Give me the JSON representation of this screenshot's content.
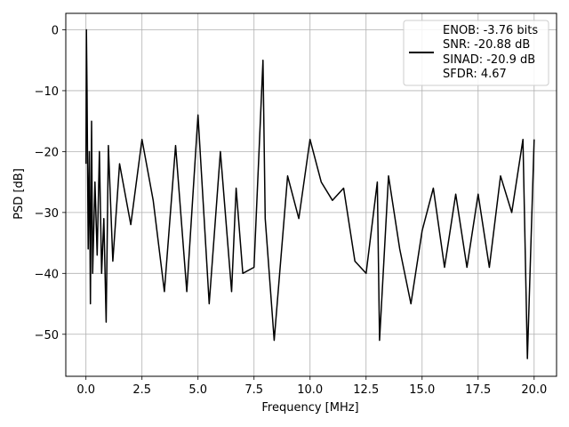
{
  "chart_data": {
    "type": "line",
    "title": "",
    "xlabel": "Frequency [MHz]",
    "ylabel": "PSD [dB]",
    "xlim": [
      -0.9,
      21.0
    ],
    "ylim": [
      -56.9,
      2.7
    ],
    "xticks": [
      0.0,
      2.5,
      5.0,
      7.5,
      10.0,
      12.5,
      15.0,
      17.5,
      20.0
    ],
    "xtick_labels": [
      "0.0",
      "2.5",
      "5.0",
      "7.5",
      "10.0",
      "12.5",
      "15.0",
      "17.5",
      "20.0"
    ],
    "yticks": [
      0,
      -10,
      -20,
      -30,
      -40,
      -50
    ],
    "ytick_labels": [
      "0",
      "−10",
      "−20",
      "−30",
      "−40",
      "−50"
    ],
    "grid": true,
    "legend_position": "top-right",
    "legend": [
      "ENOB: -3.76 bits",
      "SNR: -20.88 dB",
      "SINAD: -20.9 dB",
      "SFDR: 4.67"
    ],
    "series": [
      {
        "color": "#000000",
        "x": [
          0.0,
          0.02,
          0.05,
          0.1,
          0.15,
          0.2,
          0.25,
          0.3,
          0.4,
          0.5,
          0.6,
          0.7,
          0.8,
          0.9,
          1.0,
          1.2,
          1.5,
          2.0,
          2.5,
          3.0,
          3.5,
          4.0,
          4.5,
          5.0,
          5.5,
          6.0,
          6.5,
          6.7,
          7.0,
          7.5,
          7.9,
          8.0,
          8.4,
          9.0,
          9.5,
          10.0,
          10.5,
          11.0,
          11.5,
          12.0,
          12.5,
          13.0,
          13.1,
          13.5,
          14.0,
          14.5,
          15.0,
          15.5,
          16.0,
          16.5,
          17.0,
          17.5,
          18.0,
          18.5,
          19.0,
          19.5,
          19.7,
          20.0
        ],
        "y": [
          -22,
          0,
          -10,
          -36,
          -20,
          -45,
          -15,
          -40,
          -25,
          -37,
          -20,
          -40,
          -31,
          -48,
          -19,
          -38,
          -22,
          -32,
          -18,
          -28,
          -43,
          -19,
          -43,
          -14,
          -45,
          -20,
          -43,
          -26,
          -40,
          -39,
          -5,
          -31,
          -51,
          -24,
          -31,
          -18,
          -25,
          -28,
          -26,
          -38,
          -40,
          -25,
          -51,
          -24,
          -36,
          -45,
          -33,
          -26,
          -39,
          -27,
          -39,
          -27,
          -39,
          -24,
          -30,
          -18,
          -54,
          -18
        ]
      }
    ]
  }
}
